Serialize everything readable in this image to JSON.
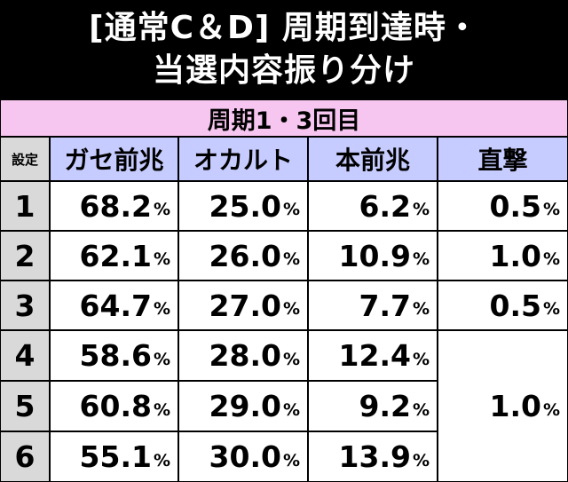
{
  "title": {
    "line1": "[通常C＆D] 周期到達時・",
    "line2": "当選内容振り分け"
  },
  "table": {
    "period_header": "周期1・3回目",
    "setting_header": "設定",
    "columns": [
      "ガセ前兆",
      "オカルト",
      "本前兆",
      "直撃"
    ],
    "pct_unit": "%",
    "rows": [
      {
        "setting": "1",
        "gase": "68.2",
        "occult": "25.0",
        "hon": "6.2",
        "chokugeki": "0.5"
      },
      {
        "setting": "2",
        "gase": "62.1",
        "occult": "26.0",
        "hon": "10.9",
        "chokugeki": "1.0"
      },
      {
        "setting": "3",
        "gase": "64.7",
        "occult": "27.0",
        "hon": "7.7",
        "chokugeki": "0.5"
      },
      {
        "setting": "4",
        "gase": "58.6",
        "occult": "28.0",
        "hon": "12.4"
      },
      {
        "setting": "5",
        "gase": "60.8",
        "occult": "29.0",
        "hon": "9.2"
      },
      {
        "setting": "6",
        "gase": "55.1",
        "occult": "30.0",
        "hon": "13.9"
      }
    ],
    "chokugeki_4_6": "1.0"
  }
}
